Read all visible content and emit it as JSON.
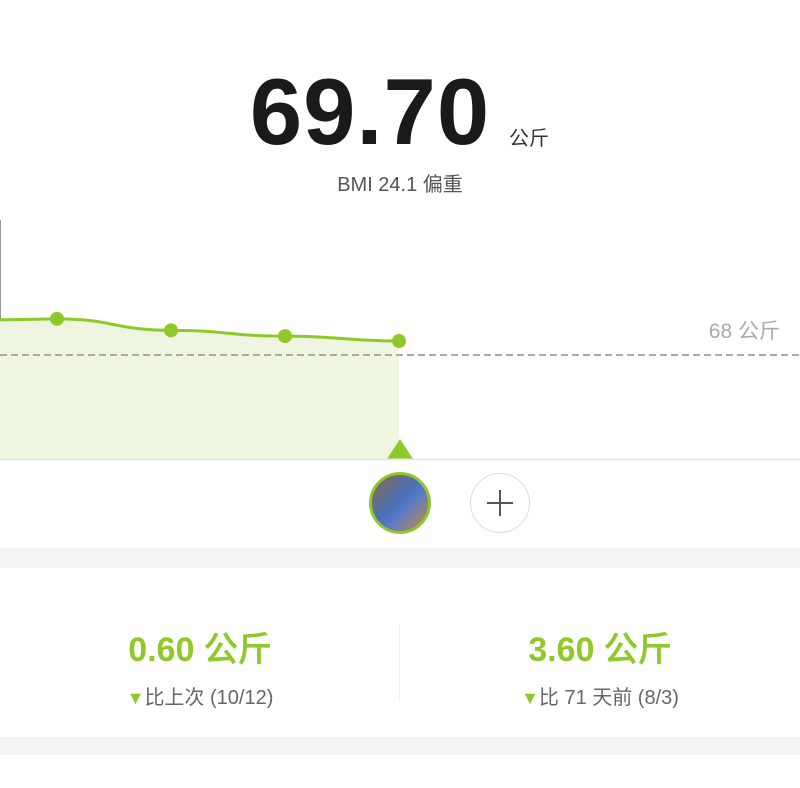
{
  "header": {
    "weight": "69.70",
    "unit": "公斤",
    "bmi_text": "BMI 24.1 偏重"
  },
  "chart_data": {
    "type": "line",
    "values": [
      72.4,
      71.0,
      70.3,
      69.7
    ],
    "reference_line": {
      "value": 68,
      "label": "68 公斤"
    },
    "colors": {
      "line": "#8fc929",
      "fill": "#eef5e0",
      "reference": "#aaaaaa"
    }
  },
  "user": {
    "avatar_icon": "user-avatar-photo",
    "add_icon": "plus-icon"
  },
  "stats": [
    {
      "value": "0.60 公斤",
      "direction": "down",
      "label": "比上次 (10/12)"
    },
    {
      "value": "3.60 公斤",
      "direction": "down",
      "label": "比 71 天前 (8/3)"
    }
  ],
  "colors": {
    "accent": "#8fc929"
  }
}
